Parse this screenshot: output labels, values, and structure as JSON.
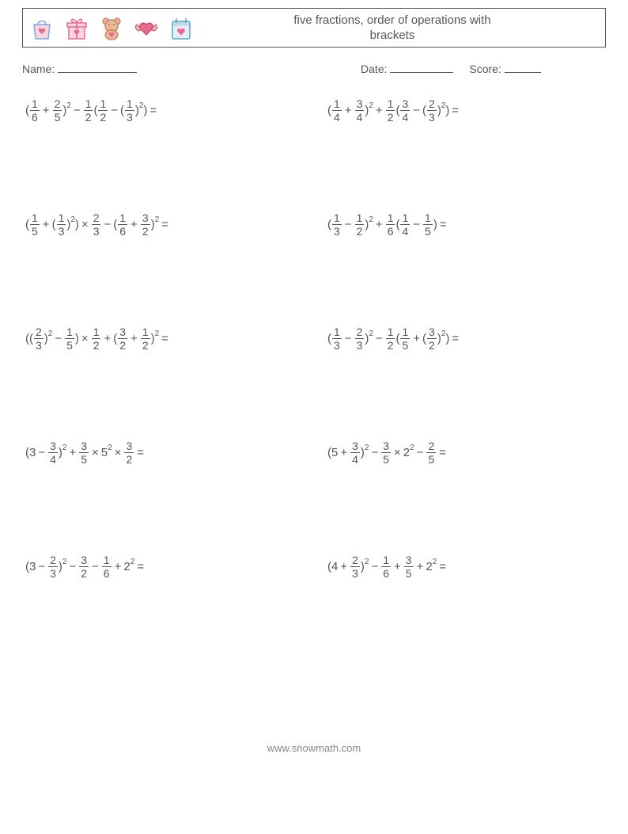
{
  "header": {
    "title_line1": "five fractions, order of operations with",
    "title_line2": "brackets",
    "icons": [
      {
        "name": "gift-bag-icon",
        "stroke": "#7aa7e8",
        "fill": "#f7d6e0",
        "accent": "#e86a92"
      },
      {
        "name": "gift-box-icon",
        "stroke": "#e86a92",
        "fill": "#f7d6e0",
        "accent": "#e86a92"
      },
      {
        "name": "teddy-bear-icon",
        "stroke": "#c97a5a",
        "fill": "#e8b89a",
        "accent": "#e86a92"
      },
      {
        "name": "winged-heart-icon",
        "stroke": "#c94a6a",
        "fill": "#e86a92",
        "accent": "#f0b4a0"
      },
      {
        "name": "calendar-heart-icon",
        "stroke": "#5aa7c9",
        "fill": "#e6eef5",
        "accent": "#e86a92"
      }
    ]
  },
  "info": {
    "name_label": "Name:",
    "date_label": "Date:",
    "score_label": "Score:"
  },
  "problems": [
    {
      "tokens": [
        {
          "t": "text",
          "v": "("
        },
        {
          "t": "frac",
          "n": "1",
          "d": "6"
        },
        {
          "t": "op",
          "v": "+"
        },
        {
          "t": "frac",
          "n": "2",
          "d": "5"
        },
        {
          "t": "text",
          "v": ")"
        },
        {
          "t": "sup",
          "v": "2"
        },
        {
          "t": "op",
          "v": "−"
        },
        {
          "t": "frac",
          "n": "1",
          "d": "2"
        },
        {
          "t": "text",
          "v": "("
        },
        {
          "t": "frac",
          "n": "1",
          "d": "2"
        },
        {
          "t": "op",
          "v": "−"
        },
        {
          "t": "text",
          "v": "("
        },
        {
          "t": "frac",
          "n": "1",
          "d": "3"
        },
        {
          "t": "text",
          "v": ")"
        },
        {
          "t": "sup",
          "v": "2"
        },
        {
          "t": "text",
          "v": ")"
        },
        {
          "t": "op",
          "v": " ="
        }
      ]
    },
    {
      "tokens": [
        {
          "t": "text",
          "v": "("
        },
        {
          "t": "frac",
          "n": "1",
          "d": "4"
        },
        {
          "t": "op",
          "v": "+"
        },
        {
          "t": "frac",
          "n": "3",
          "d": "4"
        },
        {
          "t": "text",
          "v": ")"
        },
        {
          "t": "sup",
          "v": "2"
        },
        {
          "t": "op",
          "v": "+"
        },
        {
          "t": "frac",
          "n": "1",
          "d": "2"
        },
        {
          "t": "text",
          "v": "("
        },
        {
          "t": "frac",
          "n": "3",
          "d": "4"
        },
        {
          "t": "op",
          "v": "−"
        },
        {
          "t": "text",
          "v": "("
        },
        {
          "t": "frac",
          "n": "2",
          "d": "3"
        },
        {
          "t": "text",
          "v": ")"
        },
        {
          "t": "sup",
          "v": "2"
        },
        {
          "t": "text",
          "v": ")"
        },
        {
          "t": "op",
          "v": " ="
        }
      ]
    },
    {
      "tokens": [
        {
          "t": "text",
          "v": "("
        },
        {
          "t": "frac",
          "n": "1",
          "d": "5"
        },
        {
          "t": "op",
          "v": "+"
        },
        {
          "t": "text",
          "v": "("
        },
        {
          "t": "frac",
          "n": "1",
          "d": "3"
        },
        {
          "t": "text",
          "v": ")"
        },
        {
          "t": "sup",
          "v": "2"
        },
        {
          "t": "text",
          "v": ")"
        },
        {
          "t": "op",
          "v": "×"
        },
        {
          "t": "frac",
          "n": "2",
          "d": "3"
        },
        {
          "t": "op",
          "v": "−"
        },
        {
          "t": "text",
          "v": "("
        },
        {
          "t": "frac",
          "n": "1",
          "d": "6"
        },
        {
          "t": "op",
          "v": "+"
        },
        {
          "t": "frac",
          "n": "3",
          "d": "2"
        },
        {
          "t": "text",
          "v": ")"
        },
        {
          "t": "sup",
          "v": "2"
        },
        {
          "t": "op",
          "v": " ="
        }
      ]
    },
    {
      "tokens": [
        {
          "t": "text",
          "v": "("
        },
        {
          "t": "frac",
          "n": "1",
          "d": "3"
        },
        {
          "t": "op",
          "v": "−"
        },
        {
          "t": "frac",
          "n": "1",
          "d": "2"
        },
        {
          "t": "text",
          "v": ")"
        },
        {
          "t": "sup",
          "v": "2"
        },
        {
          "t": "op",
          "v": "+"
        },
        {
          "t": "frac",
          "n": "1",
          "d": "6"
        },
        {
          "t": "text",
          "v": "("
        },
        {
          "t": "frac",
          "n": "1",
          "d": "4"
        },
        {
          "t": "op",
          "v": "−"
        },
        {
          "t": "frac",
          "n": "1",
          "d": "5"
        },
        {
          "t": "text",
          "v": ")"
        },
        {
          "t": "op",
          "v": " ="
        }
      ]
    },
    {
      "tokens": [
        {
          "t": "text",
          "v": "(("
        },
        {
          "t": "frac",
          "n": "2",
          "d": "3"
        },
        {
          "t": "text",
          "v": ")"
        },
        {
          "t": "sup",
          "v": "2"
        },
        {
          "t": "op",
          "v": "−"
        },
        {
          "t": "frac",
          "n": "1",
          "d": "5"
        },
        {
          "t": "text",
          "v": ")"
        },
        {
          "t": "op",
          "v": "×"
        },
        {
          "t": "frac",
          "n": "1",
          "d": "2"
        },
        {
          "t": "op",
          "v": "+"
        },
        {
          "t": "text",
          "v": "("
        },
        {
          "t": "frac",
          "n": "3",
          "d": "2"
        },
        {
          "t": "op",
          "v": "+"
        },
        {
          "t": "frac",
          "n": "1",
          "d": "2"
        },
        {
          "t": "text",
          "v": ")"
        },
        {
          "t": "sup",
          "v": "2"
        },
        {
          "t": "op",
          "v": " ="
        }
      ]
    },
    {
      "tokens": [
        {
          "t": "text",
          "v": "("
        },
        {
          "t": "frac",
          "n": "1",
          "d": "3"
        },
        {
          "t": "op",
          "v": "−"
        },
        {
          "t": "frac",
          "n": "2",
          "d": "3"
        },
        {
          "t": "text",
          "v": ")"
        },
        {
          "t": "sup",
          "v": "2"
        },
        {
          "t": "op",
          "v": "−"
        },
        {
          "t": "frac",
          "n": "1",
          "d": "2"
        },
        {
          "t": "text",
          "v": "("
        },
        {
          "t": "frac",
          "n": "1",
          "d": "5"
        },
        {
          "t": "op",
          "v": "+"
        },
        {
          "t": "text",
          "v": "("
        },
        {
          "t": "frac",
          "n": "3",
          "d": "2"
        },
        {
          "t": "text",
          "v": ")"
        },
        {
          "t": "sup",
          "v": "2"
        },
        {
          "t": "text",
          "v": ")"
        },
        {
          "t": "op",
          "v": " ="
        }
      ]
    },
    {
      "tokens": [
        {
          "t": "text",
          "v": "(3"
        },
        {
          "t": "op",
          "v": "−"
        },
        {
          "t": "frac",
          "n": "3",
          "d": "4"
        },
        {
          "t": "text",
          "v": ")"
        },
        {
          "t": "sup",
          "v": "2"
        },
        {
          "t": "op",
          "v": "+"
        },
        {
          "t": "frac",
          "n": "3",
          "d": "5"
        },
        {
          "t": "op",
          "v": "×"
        },
        {
          "t": "text",
          "v": "5"
        },
        {
          "t": "sup",
          "v": "2"
        },
        {
          "t": "op",
          "v": "×"
        },
        {
          "t": "frac",
          "n": "3",
          "d": "2"
        },
        {
          "t": "op",
          "v": " ="
        }
      ]
    },
    {
      "tokens": [
        {
          "t": "text",
          "v": "(5"
        },
        {
          "t": "op",
          "v": "+"
        },
        {
          "t": "frac",
          "n": "3",
          "d": "4"
        },
        {
          "t": "text",
          "v": ")"
        },
        {
          "t": "sup",
          "v": "2"
        },
        {
          "t": "op",
          "v": "−"
        },
        {
          "t": "frac",
          "n": "3",
          "d": "5"
        },
        {
          "t": "op",
          "v": "×"
        },
        {
          "t": "text",
          "v": "2"
        },
        {
          "t": "sup",
          "v": "2"
        },
        {
          "t": "op",
          "v": "−"
        },
        {
          "t": "frac",
          "n": "2",
          "d": "5"
        },
        {
          "t": "op",
          "v": " ="
        }
      ]
    },
    {
      "tokens": [
        {
          "t": "text",
          "v": "(3"
        },
        {
          "t": "op",
          "v": "−"
        },
        {
          "t": "frac",
          "n": "2",
          "d": "3"
        },
        {
          "t": "text",
          "v": ")"
        },
        {
          "t": "sup",
          "v": "2"
        },
        {
          "t": "op",
          "v": "−"
        },
        {
          "t": "frac",
          "n": "3",
          "d": "2"
        },
        {
          "t": "op",
          "v": "−"
        },
        {
          "t": "frac",
          "n": "1",
          "d": "6"
        },
        {
          "t": "op",
          "v": "+"
        },
        {
          "t": "text",
          "v": "2"
        },
        {
          "t": "sup",
          "v": "2"
        },
        {
          "t": "op",
          "v": " ="
        }
      ]
    },
    {
      "tokens": [
        {
          "t": "text",
          "v": "(4"
        },
        {
          "t": "op",
          "v": "+"
        },
        {
          "t": "frac",
          "n": "2",
          "d": "3"
        },
        {
          "t": "text",
          "v": ")"
        },
        {
          "t": "sup",
          "v": "2"
        },
        {
          "t": "op",
          "v": "−"
        },
        {
          "t": "frac",
          "n": "1",
          "d": "6"
        },
        {
          "t": "op",
          "v": "+"
        },
        {
          "t": "frac",
          "n": "3",
          "d": "5"
        },
        {
          "t": "op",
          "v": "+"
        },
        {
          "t": "text",
          "v": "2"
        },
        {
          "t": "sup",
          "v": "2"
        },
        {
          "t": "op",
          "v": " ="
        }
      ]
    }
  ],
  "footer": {
    "text": "www.snowmath.com"
  }
}
